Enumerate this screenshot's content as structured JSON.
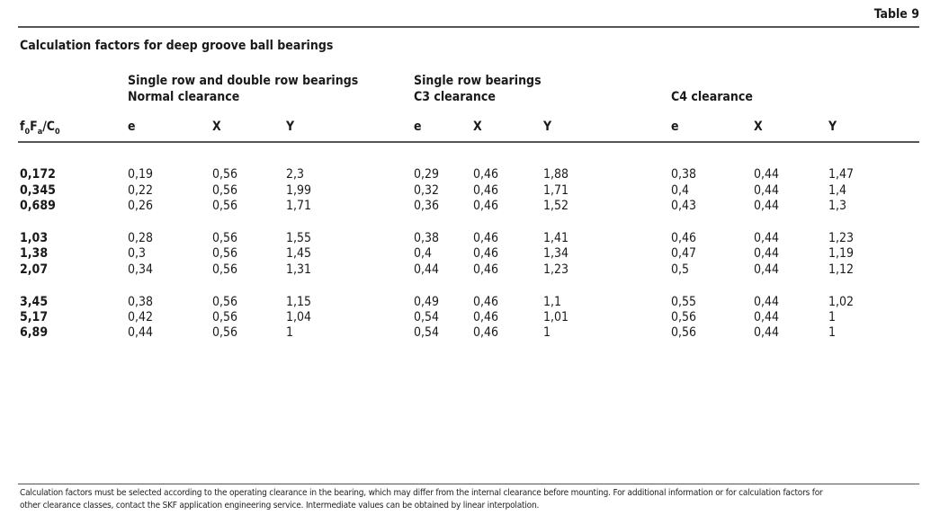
{
  "table_label": "Table 9",
  "title": "Calculation factors for deep groove ball bearings",
  "groups": [
    {
      "line1": "Single row and double row bearings",
      "line2": "Normal clearance"
    },
    {
      "line1": "Single row bearings",
      "line2": "C3 clearance"
    },
    {
      "line1": "",
      "line2": "C4 clearance"
    }
  ],
  "first_column_header": {
    "f": "f",
    "f_sub": "0",
    "F": "F",
    "F_sub": "a",
    "slash": "/C",
    "C_sub": "0"
  },
  "sub_headers": [
    "e",
    "X",
    "Y"
  ],
  "rows": [
    {
      "key": "0,172",
      "values": [
        "0,19",
        "0,56",
        "2,3",
        "0,29",
        "0,46",
        "1,88",
        "0,38",
        "0,44",
        "1,47"
      ]
    },
    {
      "key": "0,345",
      "values": [
        "0,22",
        "0,56",
        "1,99",
        "0,32",
        "0,46",
        "1,71",
        "0,4",
        "0,44",
        "1,4"
      ]
    },
    {
      "key": "0,689",
      "values": [
        "0,26",
        "0,56",
        "1,71",
        "0,36",
        "0,46",
        "1,52",
        "0,43",
        "0,44",
        "1,3"
      ]
    },
    {
      "key": "1,03",
      "values": [
        "0,28",
        "0,56",
        "1,55",
        "0,38",
        "0,46",
        "1,41",
        "0,46",
        "0,44",
        "1,23"
      ]
    },
    {
      "key": "1,38",
      "values": [
        "0,3",
        "0,56",
        "1,45",
        "0,4",
        "0,46",
        "1,34",
        "0,47",
        "0,44",
        "1,19"
      ]
    },
    {
      "key": "2,07",
      "values": [
        "0,34",
        "0,56",
        "1,31",
        "0,44",
        "0,46",
        "1,23",
        "0,5",
        "0,44",
        "1,12"
      ]
    },
    {
      "key": "3,45",
      "values": [
        "0,38",
        "0,56",
        "1,15",
        "0,49",
        "0,46",
        "1,1",
        "0,55",
        "0,44",
        "1,02"
      ]
    },
    {
      "key": "5,17",
      "values": [
        "0,42",
        "0,56",
        "1,04",
        "0,54",
        "0,46",
        "1,01",
        "0,56",
        "0,44",
        "1"
      ]
    },
    {
      "key": "6,89",
      "values": [
        "0,44",
        "0,56",
        "1",
        "0,54",
        "0,46",
        "1",
        "0,56",
        "0,44",
        "1"
      ]
    }
  ],
  "footnote": {
    "line1": "Calculation factors must be selected according to the operating clearance in the bearing, which may differ from the internal clearance before mounting. For additional information or for calculation factors for",
    "line2": "other clearance classes, contact the SKF application engineering service. Intermediate values can be obtained by linear interpolation."
  }
}
